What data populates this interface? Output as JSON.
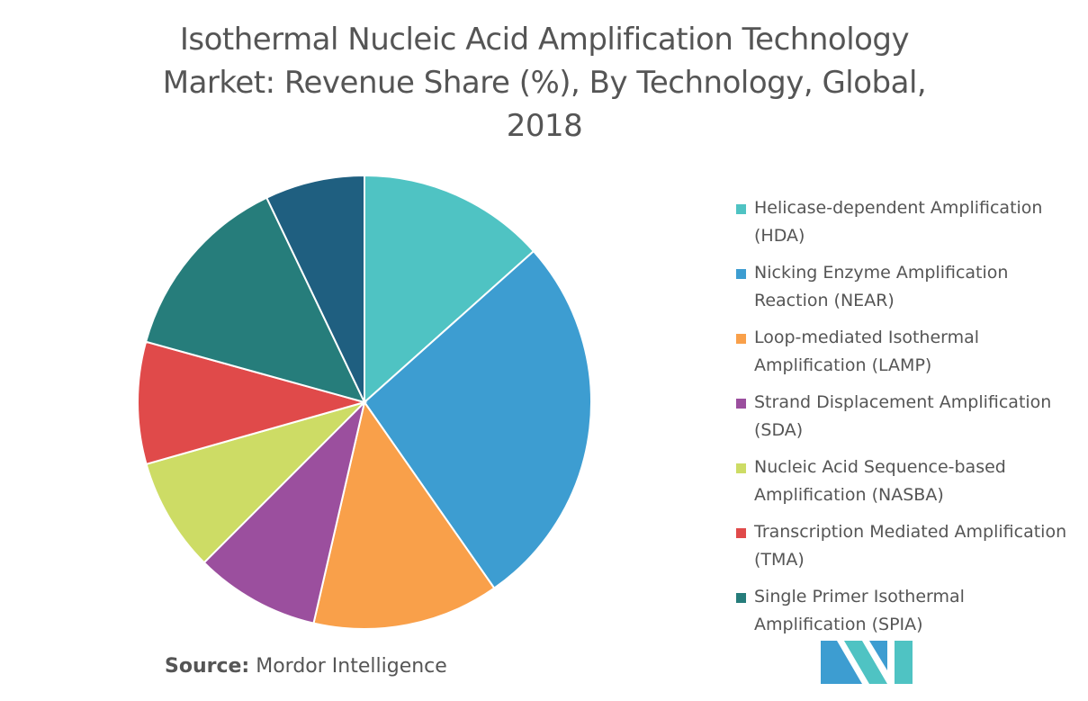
{
  "chart_data": {
    "type": "pie",
    "title": "Isothermal Nucleic Acid Amplification Technology Market: Revenue Share (%), By Technology, Global, 2018",
    "categories": [
      "Helicase-dependent Amplification (HDA)",
      "Nicking Enzyme Amplification Reaction (NEAR)",
      "Loop-mediated Isothermal Amplification (LAMP)",
      "Strand Displacement Amplification (SDA)",
      "Nucleic Acid Sequence-based Amplification (NASBA)",
      "Transcription Mediated Amplification (TMA)",
      "Single Primer Isothermal Amplification (SPIA)",
      null
    ],
    "values": [
      13.4,
      26.9,
      13.3,
      8.9,
      8.1,
      8.7,
      13.6,
      7.1
    ],
    "colors": [
      "#4fc3c3",
      "#3d9dd1",
      "#f9a04a",
      "#9b4f9e",
      "#cddc65",
      "#e04a4a",
      "#267d7b",
      "#1f5f80"
    ],
    "source_label": "Source:",
    "source": "Mordor Intelligence"
  }
}
